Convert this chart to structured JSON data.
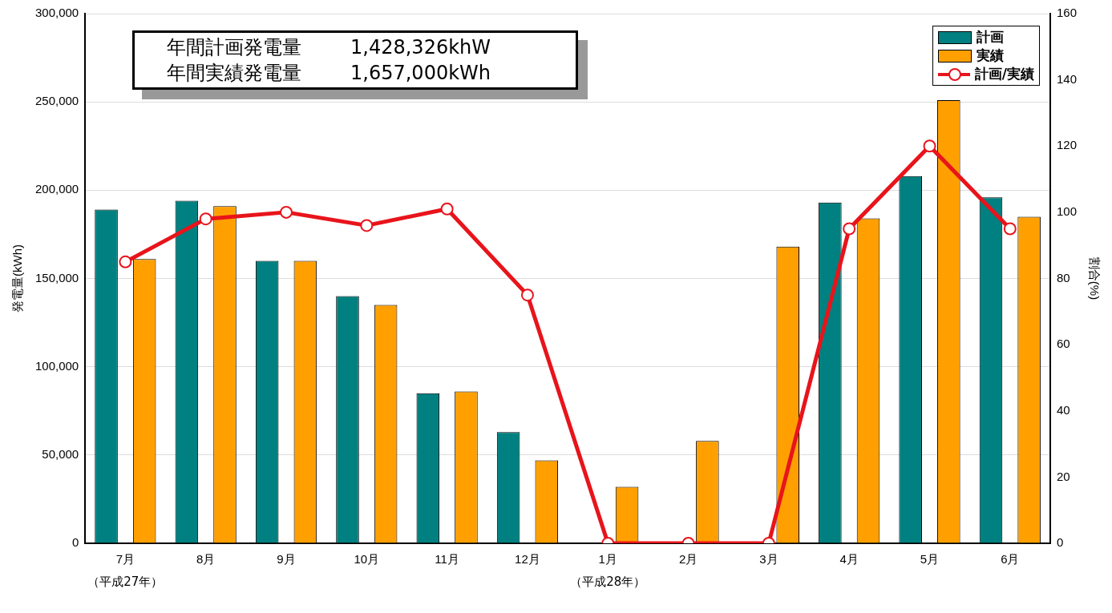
{
  "chart_data": {
    "type": "bar",
    "ylabel": "発電量(kWh)",
    "y2label": "割合(%)",
    "categories": [
      "7月",
      "8月",
      "9月",
      "10月",
      "11月",
      "12月",
      "1月",
      "2月",
      "3月",
      "4月",
      "5月",
      "6月"
    ],
    "series": [
      {
        "name": "計画",
        "color": "#008080",
        "values": [
          189000,
          194000,
          160000,
          140000,
          85000,
          63000,
          0,
          0,
          0,
          193000,
          208000,
          196000
        ]
      },
      {
        "name": "実績",
        "color": "#ffa000",
        "values": [
          161000,
          191000,
          160000,
          135000,
          86000,
          47000,
          32000,
          58000,
          168000,
          184000,
          251000,
          185000
        ]
      },
      {
        "name": "計画/実績",
        "type": "line",
        "axis": "y2",
        "color": "#e8141b",
        "marker": "circle",
        "values": [
          85,
          98,
          100,
          96,
          101,
          75,
          0,
          0,
          0,
          95,
          120,
          95
        ]
      }
    ],
    "ylim": [
      0,
      300000
    ],
    "yticks": [
      {
        "value": 0,
        "label": "0"
      },
      {
        "value": 50000,
        "label": "50,000"
      },
      {
        "value": 100000,
        "label": "100,000"
      },
      {
        "value": 150000,
        "label": "150,000"
      },
      {
        "value": 200000,
        "label": "200,000"
      },
      {
        "value": 250000,
        "label": "250,000"
      },
      {
        "value": 300000,
        "label": "300,000"
      }
    ],
    "y2lim": [
      0,
      160
    ],
    "y2ticks": [
      0,
      20,
      40,
      60,
      80,
      100,
      120,
      140,
      160
    ],
    "grid": "y",
    "legend": "top right",
    "annotations": [
      "年間計画発電量        1,428,326khW",
      "年間実績発電量        1,657,000kWh",
      "（平成27年）",
      "（平成28年）"
    ]
  }
}
